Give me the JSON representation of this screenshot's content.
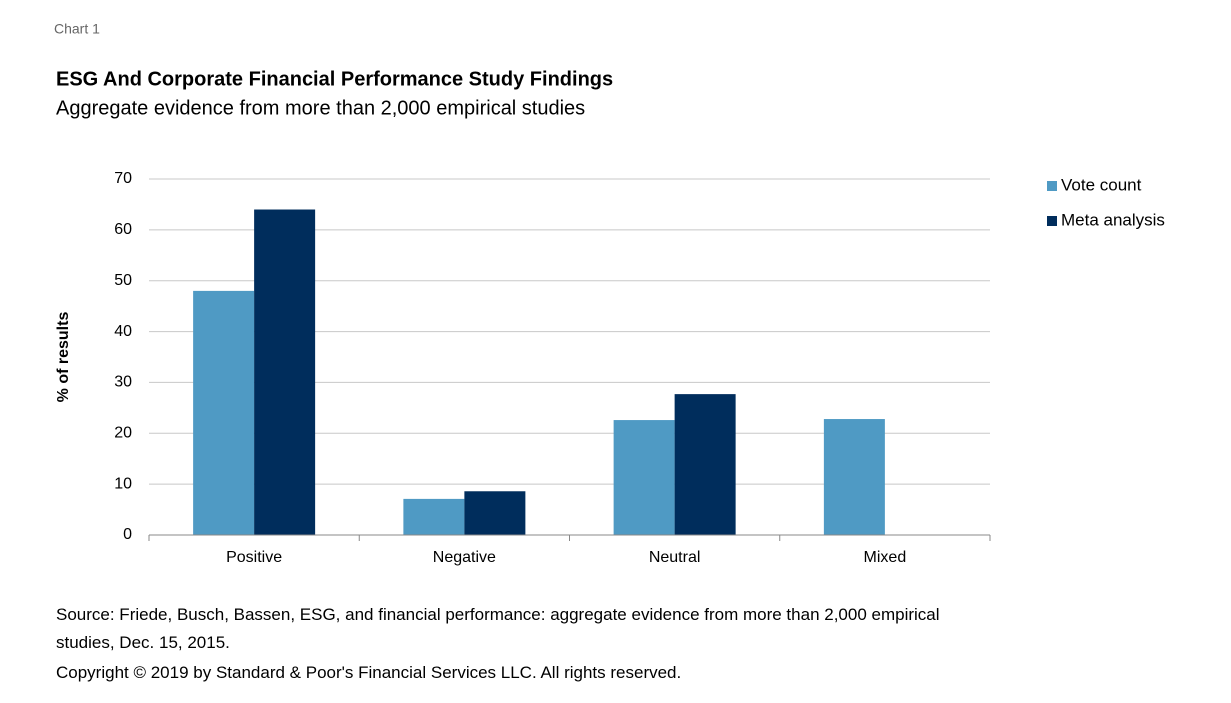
{
  "chart_data": {
    "type": "bar",
    "label": "Chart 1",
    "title": "ESG And Corporate Financial Performance Study Findings",
    "subtitle": "Aggregate evidence from more than 2,000 empirical studies",
    "y_label": "% of results",
    "categories": [
      "Positive",
      "Negative",
      "Neutral",
      "Mixed"
    ],
    "series": [
      {
        "name": "Vote count",
        "color": "#4f9ac4",
        "values": [
          48,
          7.1,
          22.6,
          22.8
        ]
      },
      {
        "name": "Meta analysis",
        "color": "#002d5c",
        "values": [
          64,
          8.6,
          27.7,
          null
        ]
      }
    ],
    "ylim": [
      0,
      70
    ],
    "yticks": [
      0,
      10,
      20,
      30,
      40,
      50,
      60,
      70
    ],
    "grid": true,
    "legend": "right",
    "source": "Source: Friede, Busch, Bassen, ESG, and financial performance: aggregate evidence from more than 2,000 empirical studies, Dec. 15, 2015.",
    "copyright": "Copyright © 2019 by Standard & Poor's Financial Services LLC. All rights reserved."
  }
}
